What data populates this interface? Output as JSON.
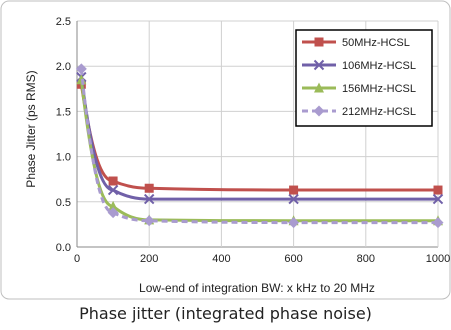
{
  "caption": "Phase jitter (integrated phase noise)",
  "chart_data": {
    "type": "line",
    "title": "",
    "xlabel": "Low-end of integration BW: x kHz to 20 MHz",
    "ylabel": "Phase Jitter (ps RMS)",
    "xlim": [
      0,
      1000
    ],
    "ylim": [
      0,
      2.5
    ],
    "xticks": [
      "0",
      "200",
      "400",
      "600",
      "800",
      "1000"
    ],
    "yticks": [
      "0.0",
      "0.5",
      "1.0",
      "1.5",
      "2.0",
      "2.5"
    ],
    "grid": true,
    "legend_position": "top-right",
    "series": [
      {
        "name": "50MHz-HCSL",
        "color": "#c0504d",
        "marker": "square",
        "dash": "solid",
        "x": [
          12,
          100,
          200,
          600,
          1000
        ],
        "y": [
          1.8,
          0.73,
          0.65,
          0.63,
          0.63
        ]
      },
      {
        "name": "106MHz-HCSL",
        "color": "#7060a8",
        "marker": "x",
        "dash": "solid",
        "x": [
          12,
          100,
          200,
          600,
          1000
        ],
        "y": [
          1.88,
          0.63,
          0.53,
          0.53,
          0.53
        ]
      },
      {
        "name": "156MHz-HCSL",
        "color": "#9bbb59",
        "marker": "triangle",
        "dash": "solid",
        "x": [
          12,
          100,
          200,
          600,
          1000
        ],
        "y": [
          1.85,
          0.45,
          0.3,
          0.29,
          0.29
        ]
      },
      {
        "name": "212MHz-HCSL",
        "color": "#a99bcf",
        "marker": "diamond",
        "dash": "dashed",
        "x": [
          12,
          100,
          200,
          600,
          1000
        ],
        "y": [
          1.97,
          0.38,
          0.29,
          0.27,
          0.27
        ]
      }
    ]
  }
}
